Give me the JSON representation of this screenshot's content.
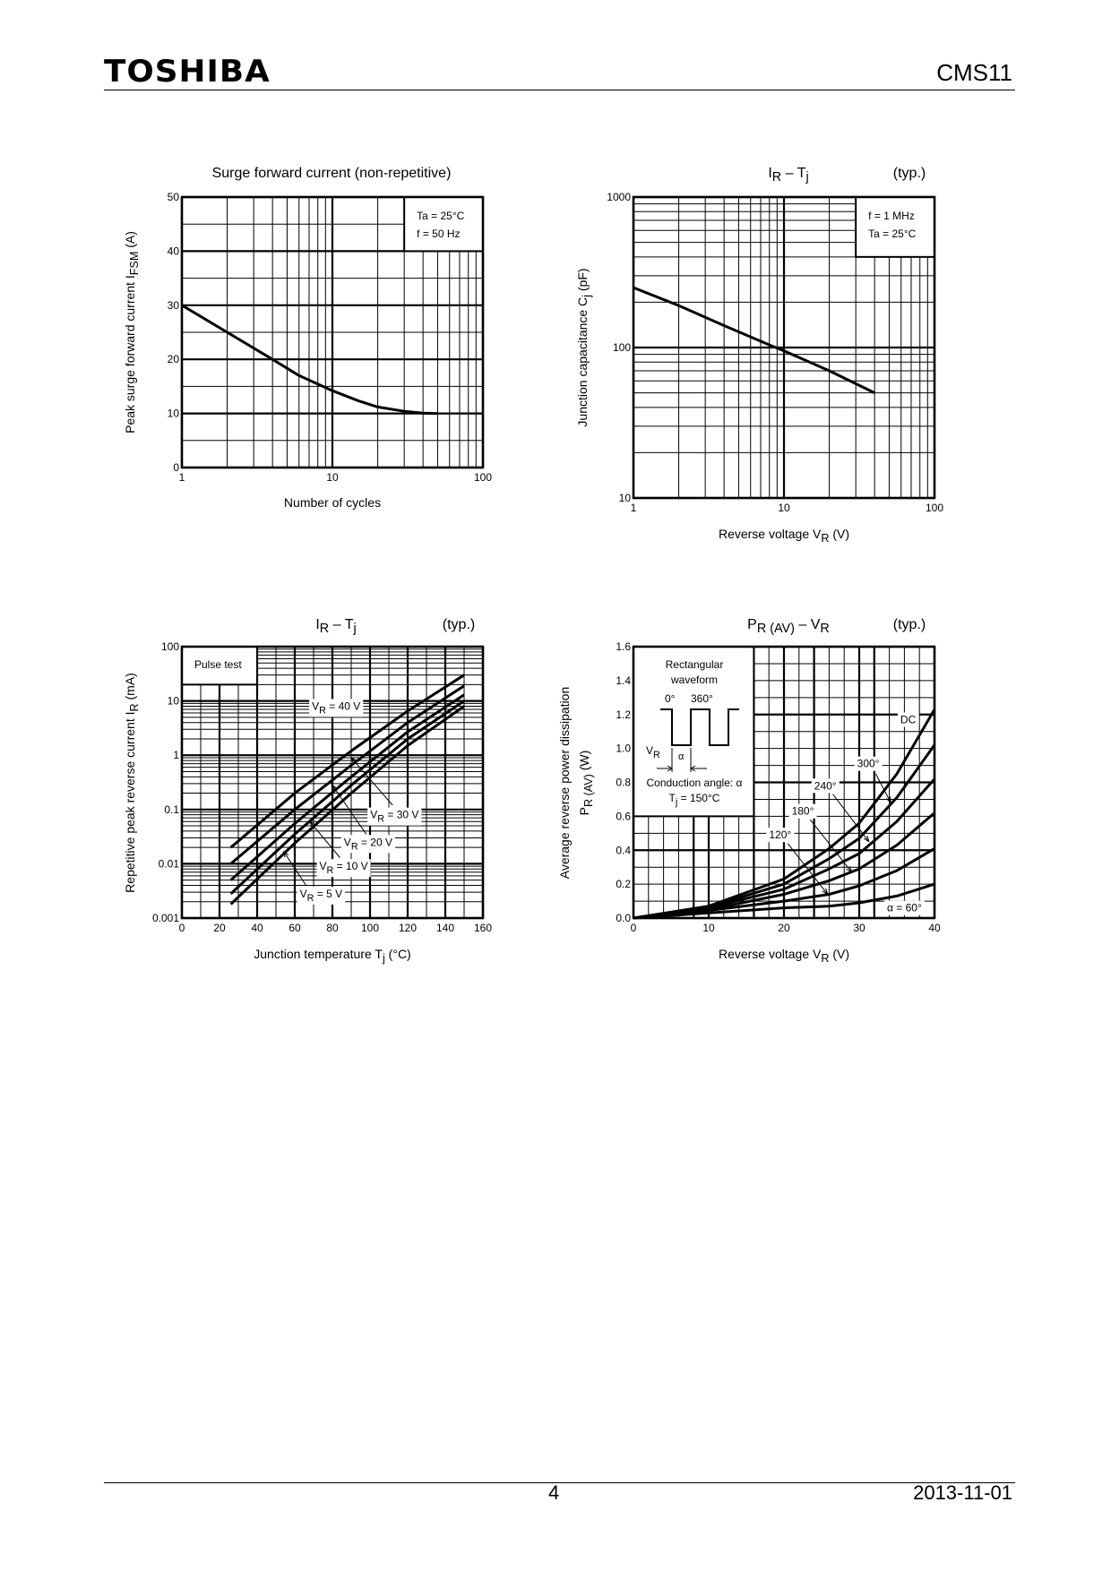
{
  "header": {
    "brand": "TOSHIBA",
    "part_number": "CMS11"
  },
  "footer": {
    "page": "4",
    "date": "2013-11-01"
  },
  "chart_data": [
    {
      "type": "line",
      "title": "Surge forward current (non-repetitive)",
      "typ": "",
      "xlabel": "Number of cycles",
      "ylabel": "Peak surge forward current   I{FSM}   (A)",
      "xscale": "log",
      "xlim": [
        1,
        100
      ],
      "xticks": [
        "1",
        "10",
        "100"
      ],
      "yscale": "linear",
      "ylim": [
        0,
        50
      ],
      "yticks": [
        "0",
        "10",
        "20",
        "30",
        "40",
        "50"
      ],
      "grid": true,
      "inset": {
        "lines": [
          "Ta = 25°C",
          "f = 50 Hz"
        ]
      },
      "series": [
        {
          "name": "IFSM",
          "points": [
            [
              1,
              30
            ],
            [
              2,
              25
            ],
            [
              4,
              20
            ],
            [
              6,
              17
            ],
            [
              10,
              14.2
            ],
            [
              15,
              12.3
            ],
            [
              20,
              11.2
            ],
            [
              30,
              10.4
            ],
            [
              40,
              10.05
            ],
            [
              50,
              10
            ]
          ]
        }
      ]
    },
    {
      "type": "line",
      "title": "I{R} – T{j}",
      "typ": "(typ.)",
      "xlabel": "Reverse voltage    V{R}    (V)",
      "ylabel": "Junction capacitance    C{j}    (pF)",
      "xscale": "log",
      "xlim": [
        1,
        100
      ],
      "xticks": [
        "1",
        "10",
        "100"
      ],
      "yscale": "log",
      "ylim": [
        10,
        1000
      ],
      "yticks": [
        "10",
        "100",
        "1000"
      ],
      "grid": true,
      "inset": {
        "lines": [
          "f = 1 MHz",
          "Ta = 25°C"
        ]
      },
      "series": [
        {
          "name": "Cj",
          "points": [
            [
              1,
              250
            ],
            [
              2,
              190
            ],
            [
              4,
              140
            ],
            [
              8,
              104
            ],
            [
              10,
              95
            ],
            [
              20,
              70
            ],
            [
              40,
              50
            ]
          ]
        }
      ]
    },
    {
      "type": "line",
      "title": "I{R} – T{j}",
      "typ": "(typ.)",
      "xlabel": "Junction temperature    T{j}    (°C)",
      "ylabel": "Repetitive peak reverse current    I{R}    (mA)",
      "xscale": "linear",
      "xlim": [
        0,
        160
      ],
      "xticks": [
        "0",
        "20",
        "40",
        "60",
        "80",
        "100",
        "120",
        "140",
        "160"
      ],
      "yscale": "log",
      "ylim": [
        0.001,
        100
      ],
      "yticks": [
        "0.001",
        "0.01",
        "0.1",
        "1",
        "10",
        "100"
      ],
      "grid": true,
      "inset": {
        "lines": [
          "Pulse test"
        ]
      },
      "series": [
        {
          "name": "V{R} = 40 V",
          "points": [
            [
              26,
              0.02
            ],
            [
              60,
              0.2
            ],
            [
              90,
              1.2
            ],
            [
              120,
              6.5
            ],
            [
              150,
              30
            ]
          ]
        },
        {
          "name": "V{R} = 30 V",
          "points": [
            [
              26,
              0.01
            ],
            [
              60,
              0.1
            ],
            [
              90,
              0.65
            ],
            [
              120,
              4
            ],
            [
              150,
              19
            ]
          ]
        },
        {
          "name": "V{R} = 20 V",
          "points": [
            [
              26,
              0.005
            ],
            [
              60,
              0.055
            ],
            [
              90,
              0.4
            ],
            [
              120,
              2.7
            ],
            [
              150,
              13
            ]
          ]
        },
        {
          "name": "V{R} = 10 V",
          "points": [
            [
              26,
              0.0028
            ],
            [
              60,
              0.035
            ],
            [
              90,
              0.28
            ],
            [
              120,
              2
            ],
            [
              150,
              10
            ]
          ]
        },
        {
          "name": "V{R} = 5 V",
          "points": [
            [
              26,
              0.0018
            ],
            [
              60,
              0.024
            ],
            [
              90,
              0.2
            ],
            [
              120,
              1.5
            ],
            [
              150,
              8
            ]
          ]
        }
      ]
    },
    {
      "type": "line",
      "title": "P{R (AV)} – V{R}",
      "typ": "(typ.)",
      "xlabel": "Reverse voltage    V{R}    (V)",
      "ylabel": "Average reverse power dissipation",
      "ylabel2": "P{R (AV)}    (W)",
      "xscale": "linear",
      "xlim": [
        0,
        40
      ],
      "xticks": [
        "0",
        "10",
        "20",
        "30",
        "40"
      ],
      "yscale": "linear",
      "ylim": [
        0,
        1.6
      ],
      "yticks": [
        "0.0",
        "0.2",
        "0.4",
        "0.6",
        "0.8",
        "1.0",
        "1.2",
        "1.4",
        "1.6"
      ],
      "grid": true,
      "inset": {
        "lines": [
          "Rectangular",
          "waveform",
          "0°",
          "360°",
          "V{R}",
          "α",
          "Conduction angle: α",
          "T{j} = 150°C"
        ]
      },
      "series": [
        {
          "name": "DC",
          "points": [
            [
              0,
              0
            ],
            [
              10,
              0.07
            ],
            [
              20,
              0.23
            ],
            [
              26,
              0.41
            ],
            [
              30,
              0.56
            ],
            [
              35,
              0.85
            ],
            [
              40,
              1.23
            ]
          ]
        },
        {
          "name": "300°",
          "points": [
            [
              0,
              0
            ],
            [
              10,
              0.065
            ],
            [
              20,
              0.2
            ],
            [
              26,
              0.35
            ],
            [
              30,
              0.47
            ],
            [
              35,
              0.71
            ],
            [
              40,
              1.02
            ]
          ]
        },
        {
          "name": "240°",
          "points": [
            [
              0,
              0
            ],
            [
              10,
              0.06
            ],
            [
              20,
              0.17
            ],
            [
              26,
              0.29
            ],
            [
              30,
              0.38
            ],
            [
              35,
              0.57
            ],
            [
              40,
              0.82
            ]
          ]
        },
        {
          "name": "180°",
          "points": [
            [
              0,
              0
            ],
            [
              10,
              0.05
            ],
            [
              20,
              0.14
            ],
            [
              26,
              0.22
            ],
            [
              30,
              0.29
            ],
            [
              35,
              0.43
            ],
            [
              40,
              0.62
            ]
          ]
        },
        {
          "name": "120°",
          "points": [
            [
              0,
              0
            ],
            [
              10,
              0.045
            ],
            [
              20,
              0.1
            ],
            [
              26,
              0.14
            ],
            [
              30,
              0.19
            ],
            [
              35,
              0.28
            ],
            [
              40,
              0.41
            ]
          ]
        },
        {
          "name": "α = 60°",
          "points": [
            [
              0,
              0
            ],
            [
              10,
              0.03
            ],
            [
              20,
              0.06
            ],
            [
              26,
              0.07
            ],
            [
              30,
              0.09
            ],
            [
              35,
              0.13
            ],
            [
              40,
              0.2
            ]
          ]
        }
      ]
    }
  ]
}
